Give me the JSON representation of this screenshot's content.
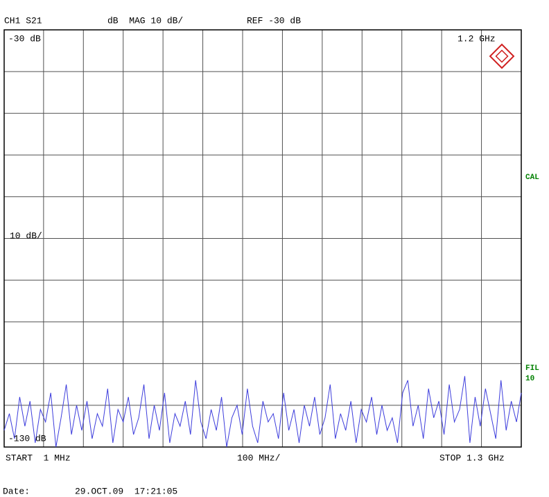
{
  "header": {
    "channel": "CH1 S21",
    "format": "dB  MAG 10 dB/",
    "ref": "REF -30 dB"
  },
  "chart_data": {
    "type": "line",
    "ref_label": "-30 dB",
    "scale_label": "10 dB/",
    "bottom_label": "-130 dB",
    "marker_label": "1.2 GHz",
    "start_label": "START  1 MHz",
    "div_label": "100 MHz/",
    "stop_label": "STOP 1.3 GHz",
    "x": [
      1,
      14,
      27,
      40,
      53,
      66,
      79,
      92,
      105,
      118,
      131,
      144,
      157,
      170,
      183,
      196,
      209,
      222,
      235,
      248,
      261,
      274,
      287,
      300,
      313,
      326,
      339,
      352,
      365,
      378,
      391,
      404,
      417,
      430,
      443,
      456,
      469,
      482,
      495,
      508,
      521,
      534,
      547,
      560,
      573,
      586,
      599,
      612,
      625,
      638,
      651,
      664,
      677,
      690,
      703,
      716,
      729,
      742,
      755,
      768,
      781,
      794,
      807,
      820,
      833,
      846,
      859,
      872,
      885,
      898,
      911,
      924,
      937,
      950,
      963,
      976,
      989,
      1002,
      1015,
      1028,
      1041,
      1054,
      1067,
      1080,
      1093,
      1106,
      1119,
      1132,
      1145,
      1158,
      1171,
      1184,
      1197,
      1210,
      1223,
      1236,
      1249,
      1262,
      1275,
      1288,
      1300
    ],
    "values": [
      -126,
      -122,
      -128,
      -118,
      -125,
      -119,
      -129,
      -121,
      -124,
      -117,
      -130,
      -123,
      -115,
      -127,
      -120,
      -126,
      -119,
      -128,
      -122,
      -125,
      -116,
      -129,
      -121,
      -124,
      -118,
      -127,
      -123,
      -115,
      -128,
      -120,
      -126,
      -117,
      -129,
      -122,
      -125,
      -119,
      -127,
      -114,
      -124,
      -128,
      -121,
      -126,
      -118,
      -130,
      -123,
      -120,
      -127,
      -116,
      -125,
      -129,
      -119,
      -124,
      -122,
      -128,
      -117,
      -126,
      -121,
      -129,
      -120,
      -125,
      -118,
      -127,
      -123,
      -115,
      -128,
      -122,
      -126,
      -119,
      -129,
      -121,
      -124,
      -118,
      -127,
      -120,
      -126,
      -123,
      -129,
      -117,
      -114,
      -125,
      -120,
      -128,
      -116,
      -123,
      -119,
      -127,
      -115,
      -124,
      -121,
      -113,
      -129,
      -118,
      -125,
      -116,
      -122,
      -128,
      -114,
      -126,
      -119,
      -124,
      -117
    ],
    "color": "#3c3cdc",
    "xlim": [
      1,
      1300
    ],
    "ylim": [
      -130,
      -30
    ],
    "xticks": [
      100,
      200,
      300,
      400,
      500,
      600,
      700,
      800,
      900,
      1000,
      1100,
      1200
    ],
    "yticks": [
      -130,
      -120,
      -110,
      -100,
      -90,
      -80,
      -70,
      -60,
      -50,
      -40,
      -30
    ],
    "grid": true
  },
  "status": {
    "cal": "CAL",
    "fil": "FIL",
    "fil_value": "10"
  },
  "footer": {
    "date_label": "Date:",
    "date": "29.OCT.09  17:21:05"
  }
}
